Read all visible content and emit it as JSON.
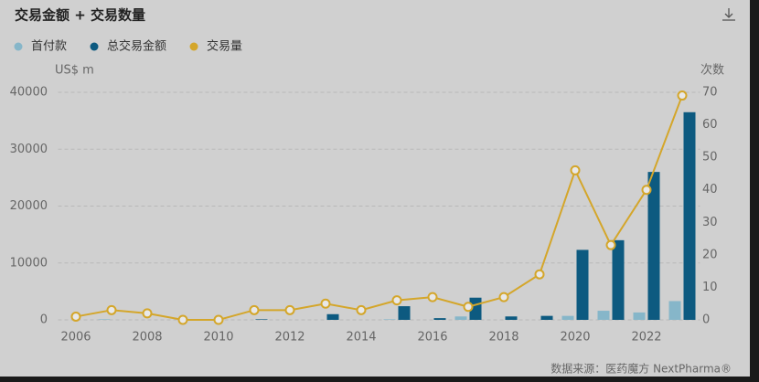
{
  "chart_data": {
    "type": "bar-line",
    "title": "交易金额 + 交易数量",
    "ylabel": "US$ m",
    "y2label": "次数",
    "source": "数据来源：医药魔方 NextPharma®",
    "x": [
      2006,
      2007,
      2008,
      2009,
      2010,
      2011,
      2012,
      2013,
      2014,
      2015,
      2016,
      2017,
      2018,
      2019,
      2020,
      2021,
      2022,
      2023
    ],
    "xlim": [
      2005.5,
      2023.5
    ],
    "xticks": [
      2006,
      2008,
      2010,
      2012,
      2014,
      2016,
      2018,
      2020,
      2022
    ],
    "ylim": [
      0,
      40000
    ],
    "yticks": [
      0,
      10000,
      20000,
      30000,
      40000
    ],
    "y2lim": [
      0,
      70
    ],
    "y2ticks": [
      0,
      10,
      20,
      30,
      40,
      50,
      60,
      70
    ],
    "grid": true,
    "series": [
      {
        "name": "首付款",
        "type": "bar",
        "color": "#86b6c9",
        "values": [
          0,
          100,
          0,
          0,
          0,
          0,
          0,
          0,
          0,
          100,
          0,
          600,
          0,
          0,
          700,
          1600,
          1300,
          3300
        ]
      },
      {
        "name": "总交易金额",
        "type": "bar",
        "color": "#0d5a80",
        "values": [
          0,
          0,
          0,
          0,
          0,
          100,
          0,
          1000,
          0,
          2400,
          300,
          3900,
          600,
          700,
          12300,
          14000,
          26000,
          36500
        ]
      },
      {
        "name": "交易量",
        "type": "line",
        "axis": "y2",
        "color": "#d4a62a",
        "values": [
          1,
          3,
          2,
          0,
          0,
          3,
          3,
          5,
          3,
          6,
          7,
          4,
          7,
          14,
          46,
          23,
          40,
          69
        ]
      }
    ]
  }
}
